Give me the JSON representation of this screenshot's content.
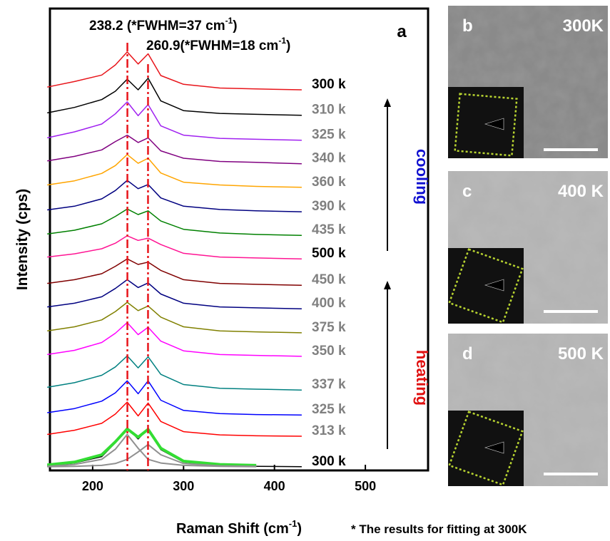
{
  "chart_data": {
    "type": "line",
    "panel_label": "a",
    "x_label": [
      "Raman Shift (cm",
      "-1",
      ")"
    ],
    "y_label": "Intensity (cps)",
    "xlim": [
      153,
      569
    ],
    "xticks": [
      200,
      300,
      400,
      500
    ],
    "ylim": [
      0,
      100
    ],
    "x": [
      150,
      180,
      210,
      225,
      238,
      250,
      261,
      275,
      300,
      340,
      380,
      430
    ],
    "series": [
      {
        "name": "300 k",
        "color": "#e8141a",
        "label_color": "#000000",
        "line_width": 1.5,
        "values": [
          83.0,
          84.2,
          85.6,
          87.8,
          90.6,
          88.0,
          90.2,
          85.5,
          83.6,
          82.8,
          82.6,
          82.4
        ]
      },
      {
        "name": "310 k",
        "color": "#000000",
        "label_color": "#808080",
        "line_width": 1.5,
        "values": [
          77.4,
          78.6,
          80.3,
          82.1,
          84.7,
          82.4,
          84.9,
          80.0,
          77.9,
          77.3,
          77.1,
          76.9
        ]
      },
      {
        "name": "325 k",
        "color": "#a020f0",
        "label_color": "#808080",
        "line_width": 1.5,
        "values": [
          72.0,
          73.3,
          75.0,
          77.2,
          79.8,
          76.8,
          79.2,
          74.6,
          72.6,
          71.9,
          71.7,
          71.5
        ]
      },
      {
        "name": "340 k",
        "color": "#800080",
        "label_color": "#808080",
        "line_width": 1.5,
        "values": [
          67.0,
          68.0,
          69.4,
          71.2,
          72.6,
          71.0,
          72.0,
          69.2,
          67.6,
          66.9,
          66.7,
          66.4
        ]
      },
      {
        "name": "360 k",
        "color": "#ffa500",
        "label_color": "#808080",
        "line_width": 1.5,
        "values": [
          61.8,
          62.7,
          64.3,
          66.0,
          68.4,
          66.5,
          67.6,
          64.4,
          62.4,
          61.8,
          61.5,
          61.3
        ]
      },
      {
        "name": "390 k",
        "color": "#000080",
        "label_color": "#808080",
        "line_width": 1.5,
        "values": [
          56.4,
          57.2,
          58.8,
          60.6,
          62.8,
          61.0,
          61.9,
          59.0,
          57.2,
          56.5,
          56.2,
          56.0
        ]
      },
      {
        "name": "435 k",
        "color": "#008000",
        "label_color": "#808080",
        "line_width": 1.5,
        "values": [
          51.2,
          52.0,
          53.4,
          55.0,
          56.6,
          55.4,
          56.2,
          54.0,
          52.2,
          51.4,
          51.1,
          50.9
        ]
      },
      {
        "name": "500 k",
        "color": "#ff1493",
        "label_color": "#000000",
        "line_width": 1.5,
        "values": [
          46.2,
          46.9,
          48.0,
          49.2,
          50.8,
          49.8,
          50.3,
          48.9,
          47.0,
          46.2,
          46.0,
          45.8
        ]
      },
      {
        "name": "450 k",
        "color": "#800000",
        "label_color": "#808080",
        "line_width": 1.5,
        "values": [
          40.5,
          41.3,
          42.6,
          44.2,
          45.8,
          44.6,
          45.1,
          43.3,
          41.3,
          40.5,
          40.3,
          40.1
        ]
      },
      {
        "name": "400 k",
        "color": "#000080",
        "label_color": "#808080",
        "line_width": 1.5,
        "values": [
          35.4,
          36.2,
          37.6,
          39.4,
          41.3,
          39.6,
          40.6,
          38.2,
          36.2,
          35.4,
          35.2,
          35.0
        ]
      },
      {
        "name": "375 k",
        "color": "#808000",
        "label_color": "#808080",
        "line_width": 1.5,
        "values": [
          30.2,
          31.1,
          32.6,
          34.4,
          36.4,
          34.6,
          35.6,
          33.2,
          31.1,
          30.2,
          30.0,
          29.8
        ]
      },
      {
        "name": "350 k",
        "color": "#ff00ff",
        "label_color": "#808080",
        "line_width": 1.5,
        "values": [
          25.1,
          26.0,
          27.7,
          29.7,
          32.0,
          29.4,
          31.0,
          28.0,
          25.9,
          25.1,
          24.9,
          24.7
        ]
      },
      {
        "name": "337 k",
        "color": "#008080",
        "label_color": "#808080",
        "line_width": 1.5,
        "values": [
          18.0,
          19.0,
          20.6,
          22.4,
          24.8,
          22.2,
          24.6,
          20.8,
          18.6,
          17.8,
          17.6,
          17.4
        ]
      },
      {
        "name": "325 k",
        "color": "#0000ff",
        "label_color": "#808080",
        "line_width": 1.5,
        "values": [
          12.5,
          13.4,
          15.0,
          16.8,
          19.4,
          16.6,
          19.4,
          15.2,
          13.0,
          12.3,
          12.1,
          12.0
        ]
      },
      {
        "name": "313 k",
        "color": "#ff0000",
        "label_color": "#808080",
        "line_width": 1.5,
        "values": [
          7.8,
          8.7,
          10.2,
          12.2,
          14.8,
          11.8,
          14.6,
          10.6,
          8.4,
          7.7,
          7.5,
          7.4
        ]
      },
      {
        "name": "300 k",
        "color": "#000000",
        "label_color": "#000000",
        "line_width": 1.5,
        "values": [
          1.0,
          1.6,
          3.0,
          6.0,
          9.2,
          6.8,
          9.0,
          4.5,
          1.8,
          1.0,
          0.9,
          0.8
        ]
      },
      {
        "color": "#33dd33",
        "line_width": 4,
        "values": [
          1.2,
          1.8,
          3.4,
          6.2,
          9.0,
          7.2,
          8.9,
          4.8,
          2.0,
          1.3,
          1.1,
          null
        ]
      },
      {
        "color": "#909090",
        "line_width": 2,
        "values": [
          0.9,
          1.3,
          2.4,
          4.6,
          7.8,
          4.8,
          2.4,
          1.6,
          1.1,
          0.9,
          0.8,
          null
        ]
      },
      {
        "color": "#909090",
        "line_width": 2,
        "values": [
          0.8,
          0.9,
          1.1,
          1.5,
          2.4,
          4.0,
          5.6,
          3.4,
          1.5,
          1.0,
          0.9,
          null
        ]
      }
    ],
    "peak_line_color": "#e8141a",
    "annotations": [
      {
        "parts": [
          "238.2 (*FWHM=37 cm",
          "-1",
          ")"
        ],
        "x": 238.2
      },
      {
        "parts": [
          "260.9(*FWHM=18 cm",
          "-1",
          ")"
        ],
        "x": 260.9
      }
    ],
    "cooling_label": "cooling",
    "heating_label": "heating",
    "footnote": "* The results for fitting at 300K"
  },
  "panels": [
    {
      "label": "b",
      "temperature": "300K"
    },
    {
      "label": "c",
      "temperature": "400 K"
    },
    {
      "label": "d",
      "temperature": "500 K"
    }
  ]
}
